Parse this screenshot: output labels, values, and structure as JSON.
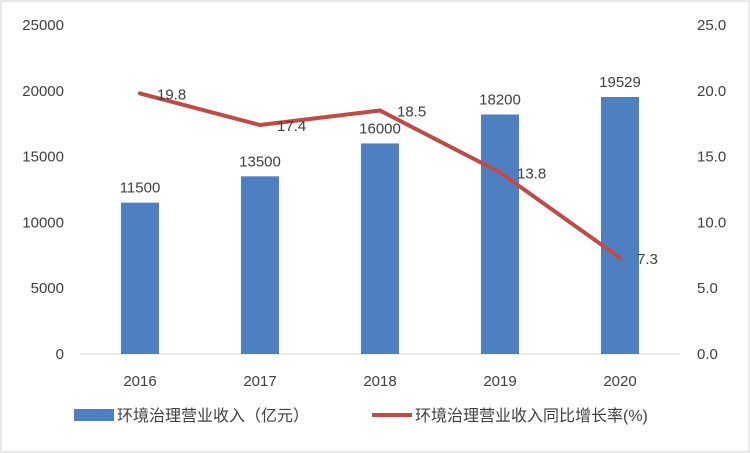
{
  "chart_data": {
    "type": "bar+line",
    "categories": [
      "2016",
      "2017",
      "2018",
      "2019",
      "2020"
    ],
    "series": [
      {
        "name": "环境治理营业收入（亿元）",
        "type": "bar",
        "axis": "left",
        "values": [
          11500,
          13500,
          16000,
          18200,
          19529
        ],
        "color": "#4E7FC0"
      },
      {
        "name": "环境治理营业收入同比增长率(%)",
        "type": "line",
        "axis": "right",
        "values": [
          19.8,
          17.4,
          18.5,
          13.8,
          7.3
        ],
        "color": "#BE4B48"
      }
    ],
    "y_left": {
      "lim": [
        0,
        25000
      ],
      "ticks": [
        "0",
        "5000",
        "10000",
        "15000",
        "20000",
        "25000"
      ]
    },
    "y_right": {
      "lim": [
        0,
        25
      ],
      "ticks": [
        "0.0",
        "5.0",
        "10.0",
        "15.0",
        "20.0",
        "25.0"
      ]
    },
    "bar_labels": [
      "11500",
      "13500",
      "16000",
      "18200",
      "19529"
    ],
    "line_labels": [
      "19.8",
      "17.4",
      "18.5",
      "13.8",
      "7.3"
    ],
    "grid": false,
    "legend": "bottom"
  }
}
